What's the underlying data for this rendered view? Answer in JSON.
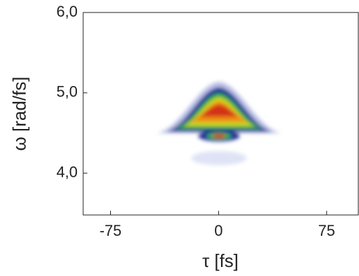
{
  "chart_data": {
    "type": "spectrogram",
    "xlabel": "τ [fs]",
    "ylabel": "ω [rad/fs]",
    "xlim": [
      -94,
      97
    ],
    "xticks": [
      -75,
      0,
      75
    ],
    "ylim": [
      3.48,
      6.0
    ],
    "yticks": [
      {
        "value": 4,
        "label": "4,0"
      },
      {
        "value": 5,
        "label": "5,0"
      },
      {
        "value": 6,
        "label": "6,0"
      }
    ]
  }
}
